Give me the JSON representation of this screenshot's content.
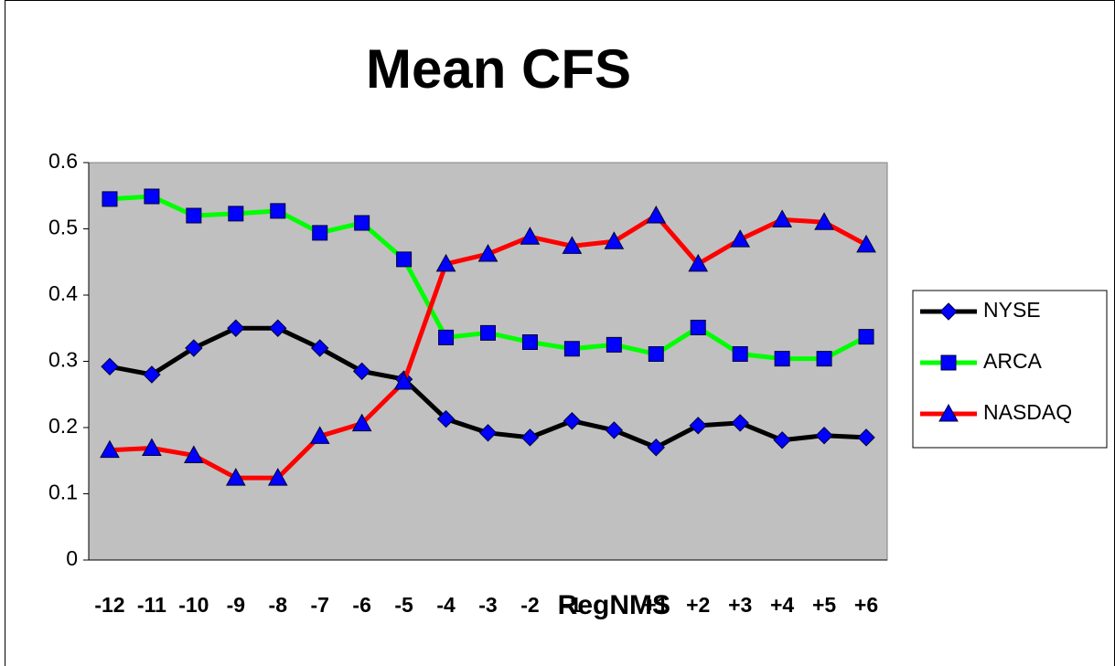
{
  "chart_data": {
    "type": "line",
    "title": "Mean CFS",
    "categories": [
      "-12",
      "-11",
      "-10",
      "-9",
      "-8",
      "-7",
      "-6",
      "-5",
      "-4",
      "-3",
      "-2",
      "-1",
      "RegNMS",
      "+1",
      "+2",
      "+3",
      "+4",
      "+5",
      "+6"
    ],
    "series": [
      {
        "name": "NYSE",
        "color": "#000000",
        "marker": "diamond",
        "marker_color": "#0000ff",
        "values": [
          0.292,
          0.28,
          0.32,
          0.35,
          0.35,
          0.32,
          0.285,
          0.273,
          0.213,
          0.192,
          0.185,
          0.21,
          0.196,
          0.17,
          0.203,
          0.207,
          0.181,
          0.188,
          0.185
        ]
      },
      {
        "name": "ARCA",
        "color": "#00ff00",
        "marker": "square",
        "marker_color": "#0000ff",
        "values": [
          0.545,
          0.549,
          0.52,
          0.523,
          0.527,
          0.494,
          0.509,
          0.454,
          0.336,
          0.343,
          0.329,
          0.319,
          0.325,
          0.311,
          0.351,
          0.311,
          0.304,
          0.304,
          0.337
        ]
      },
      {
        "name": "NASDAQ",
        "color": "#ff0000",
        "marker": "triangle",
        "marker_color": "#0000ff",
        "values": [
          0.166,
          0.169,
          0.158,
          0.124,
          0.124,
          0.187,
          0.206,
          0.269,
          0.447,
          0.462,
          0.488,
          0.474,
          0.481,
          0.52,
          0.447,
          0.484,
          0.514,
          0.51,
          0.476
        ]
      }
    ],
    "ylim": [
      0,
      0.6
    ],
    "yticks": [
      0,
      0.1,
      0.2,
      0.3,
      0.4,
      0.5,
      0.6
    ],
    "grid": false,
    "legend": "right",
    "plot_background": "#c0c0c0"
  }
}
